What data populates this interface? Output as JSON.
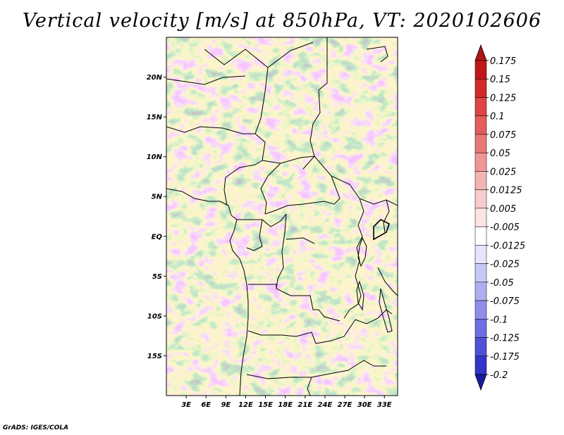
{
  "title": "Vertical velocity [m/s] at 850hPa, VT: 2020102606",
  "credit": "GrADS: IGES/COLA",
  "map": {
    "lon_range": [
      0,
      35
    ],
    "lat_range": [
      -20,
      25
    ],
    "lat_labels": [
      {
        "lat": 20,
        "text": "20N"
      },
      {
        "lat": 15,
        "text": "15N"
      },
      {
        "lat": 10,
        "text": "10N"
      },
      {
        "lat": 5,
        "text": "5N"
      },
      {
        "lat": 0,
        "text": "EQ"
      },
      {
        "lat": -5,
        "text": "5S"
      },
      {
        "lat": -10,
        "text": "10S"
      },
      {
        "lat": -15,
        "text": "15S"
      }
    ],
    "lon_labels": [
      {
        "lon": 3,
        "text": "3E"
      },
      {
        "lon": 6,
        "text": "6E"
      },
      {
        "lon": 9,
        "text": "9E"
      },
      {
        "lon": 12,
        "text": "12E"
      },
      {
        "lon": 15,
        "text": "15E"
      },
      {
        "lon": 18,
        "text": "18E"
      },
      {
        "lon": 21,
        "text": "21E"
      },
      {
        "lon": 24,
        "text": "24E"
      },
      {
        "lon": 27,
        "text": "27E"
      },
      {
        "lon": 30,
        "text": "30E"
      },
      {
        "lon": 33,
        "text": "33E"
      }
    ]
  },
  "colorbar": {
    "levels": [
      {
        "label": "0.175",
        "color": "#c01818"
      },
      {
        "label": "0.15",
        "color": "#d22a2a"
      },
      {
        "label": "0.125",
        "color": "#dd4444"
      },
      {
        "label": "0.1",
        "color": "#e45c5c"
      },
      {
        "label": "0.075",
        "color": "#ea7878"
      },
      {
        "label": "0.05",
        "color": "#f09696"
      },
      {
        "label": "0.025",
        "color": "#f4b4b4"
      },
      {
        "label": "0.0125",
        "color": "#f8cccc"
      },
      {
        "label": "0.005",
        "color": "#fbe4e4"
      },
      {
        "label": "-0.005",
        "color": "#ffffff"
      },
      {
        "label": "-0.0125",
        "color": "#e4e4fb"
      },
      {
        "label": "-0.025",
        "color": "#c8c8f6"
      },
      {
        "label": "-0.05",
        "color": "#aeaef0"
      },
      {
        "label": "-0.075",
        "color": "#8e8eea"
      },
      {
        "label": "-0.1",
        "color": "#6e6ee2"
      },
      {
        "label": "-0.125",
        "color": "#5050d8"
      },
      {
        "label": "-0.175",
        "color": "#3434c8"
      },
      {
        "label": "-0.2",
        "color": "#2020b0"
      }
    ],
    "top_extend_color": "#b01414",
    "bottom_extend_color": "#1a1aa0"
  }
}
